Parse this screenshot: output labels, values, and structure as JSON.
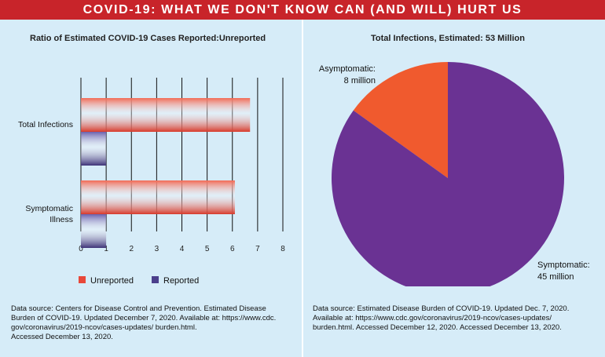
{
  "banner_title": "COVID-19: WHAT WE DON'T KNOW CAN (AND WILL) HURT US",
  "colors": {
    "unreported": "#e8483a",
    "reported": "#4b3f8c",
    "asymptomatic": "#f05a2e",
    "symptomatic": "#6a3293",
    "banner": "#c8242a",
    "background": "#d6ecf8"
  },
  "chart_data": [
    {
      "type": "bar",
      "orientation": "horizontal",
      "title": "Ratio of Estimated COVID-19 Cases Reported:Unreported",
      "categories": [
        "Total Infections",
        "Symptomatic Illness"
      ],
      "series": [
        {
          "name": "Unreported",
          "values": [
            6.7,
            6.1
          ]
        },
        {
          "name": "Reported",
          "values": [
            1,
            1
          ]
        }
      ],
      "x_ticks": [
        "0",
        "1",
        "2",
        "3",
        "4",
        "5",
        "6",
        "7",
        "8"
      ],
      "xlim": [
        0,
        8
      ],
      "grid": true,
      "legend_position": "bottom-left"
    },
    {
      "type": "pie",
      "title": "Total Infections, Estimated: 53 Million",
      "slices": [
        {
          "label": "Asymptomatic:",
          "value_label": "8 million",
          "value": 8
        },
        {
          "label": "Symptomatic:",
          "value_label": "45 million",
          "value": 45
        }
      ]
    }
  ],
  "sources": {
    "left": "Data source: Centers for Disease Control and Prevention. Estimated Disease\nBurden of COVID-19. Updated December 7, 2020. Available at: https://www.cdc.\ngov/coronavirus/2019-ncov/cases-updates/ burden.html.\nAccessed December 13, 2020.",
    "right": "Data source: Estimated Disease Burden of COVID-19. Updated Dec. 7, 2020.\nAvailable at: https://www.cdc.gov/coronavirus/2019-ncov/cases-updates/\nburden.html. Accessed December 12, 2020. Accessed December 13, 2020."
  }
}
